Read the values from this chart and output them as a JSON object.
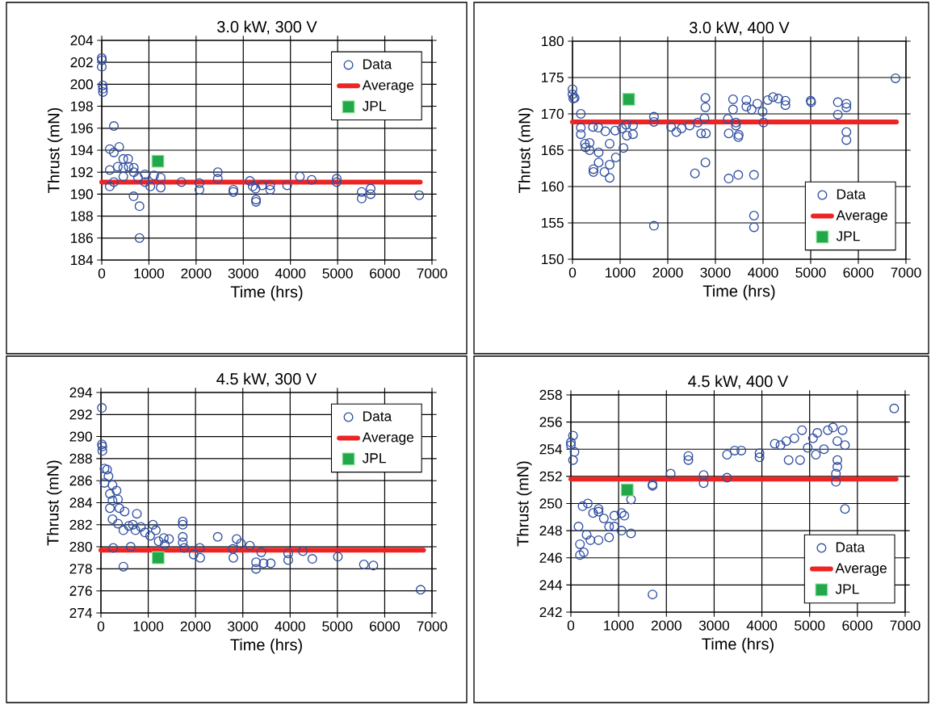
{
  "chart_data": [
    {
      "type": "scatter",
      "title": "3.0 kW, 300 V",
      "xlabel": "Time (hrs)",
      "ylabel": "Thrust (mN)",
      "xlim": [
        0,
        7000
      ],
      "xticks": [
        0,
        1000,
        2000,
        3000,
        4000,
        5000,
        6000,
        7000
      ],
      "ylim": [
        184,
        204
      ],
      "yticks": [
        184,
        186,
        188,
        190,
        192,
        194,
        196,
        198,
        200,
        202,
        204
      ],
      "grid": true,
      "legend": "top right",
      "series": [
        {
          "name": "Data",
          "marker": "circle",
          "color": "#2f4ea0",
          "x": [
            0,
            5,
            0,
            20,
            25,
            25,
            257,
            170,
            257,
            370,
            457,
            560,
            340,
            457,
            570,
            680,
            170,
            457,
            680,
            770,
            915,
            915,
            1030,
            1110,
            1250,
            1250,
            257,
            170,
            675,
            800,
            800,
            1690,
            2070,
            2070,
            2460,
            2460,
            2790,
            2790,
            3140,
            3200,
            3260,
            3270,
            3270,
            3400,
            3570,
            3570,
            3930,
            4200,
            4450,
            4980,
            4980,
            5510,
            5510,
            5700,
            5700,
            6730
          ],
          "values": [
            202.4,
            202.2,
            201.6,
            199.9,
            199.6,
            199.3,
            196.2,
            194.1,
            193.8,
            194.3,
            193.2,
            193.2,
            192.5,
            192.4,
            192.5,
            192.4,
            192.2,
            191.6,
            192.0,
            191.5,
            191.8,
            191.1,
            190.7,
            191.7,
            191.5,
            190.6,
            191.1,
            190.7,
            189.8,
            188.9,
            186.0,
            191.1,
            191.0,
            190.4,
            192.0,
            191.4,
            190.4,
            190.2,
            191.2,
            190.7,
            190.5,
            189.5,
            189.3,
            190.8,
            190.8,
            190.4,
            190.8,
            191.6,
            191.3,
            191.4,
            191.1,
            190.2,
            189.6,
            190.5,
            190.0,
            189.9
          ]
        },
        {
          "name": "Average",
          "type": "line",
          "color": "#ee2424",
          "x": [
            0,
            6750
          ],
          "values": [
            191.1,
            191.1
          ]
        },
        {
          "name": "JPL",
          "marker": "square",
          "color": "#22a84a",
          "x": [
            1190
          ],
          "values": [
            193.0
          ]
        }
      ]
    },
    {
      "type": "scatter",
      "title": "3.0 kW, 400 V",
      "xlabel": "Time (hrs)",
      "ylabel": "Thrust (mN)",
      "xlim": [
        0,
        7000
      ],
      "xticks": [
        0,
        1000,
        2000,
        3000,
        4000,
        5000,
        6000,
        7000
      ],
      "ylim": [
        150,
        180
      ],
      "yticks": [
        150,
        155,
        160,
        165,
        170,
        175,
        180
      ],
      "grid": true,
      "legend": "bottom right",
      "series": [
        {
          "name": "Data",
          "marker": "circle",
          "color": "#2f4ea0",
          "x": [
            0,
            0,
            17,
            45,
            175,
            175,
            175,
            260,
            275,
            360,
            360,
            430,
            545,
            550,
            440,
            440,
            550,
            670,
            780,
            780,
            690,
            780,
            895,
            910,
            1070,
            1040,
            1125,
            1270,
            1270,
            1140,
            1710,
            1710,
            1710,
            2070,
            2180,
            2290,
            2460,
            2630,
            2770,
            2790,
            2790,
            2700,
            2800,
            2570,
            2790,
            3280,
            3280,
            3480,
            3810,
            3810,
            3810,
            3370,
            3260,
            3430,
            3430,
            3490,
            3480,
            3370,
            3650,
            3650,
            3880,
            3990,
            4010,
            4210,
            4320,
            4470,
            4470,
            4100,
            3760,
            5000,
            5010,
            5570,
            5570,
            5750,
            5750,
            5750,
            5750,
            6780
          ],
          "values": [
            173.4,
            172.7,
            172.1,
            172.2,
            170.0,
            168.1,
            167.2,
            165.9,
            165.4,
            166.0,
            165.0,
            168.2,
            168.1,
            164.7,
            162.4,
            162.0,
            163.3,
            162.0,
            161.2,
            163.0,
            167.6,
            165.9,
            167.7,
            164.0,
            165.3,
            168.0,
            168.5,
            168.4,
            167.2,
            167.0,
            169.6,
            168.9,
            154.6,
            168.2,
            167.5,
            168.0,
            168.4,
            168.8,
            169.4,
            172.2,
            170.9,
            167.3,
            167.3,
            161.8,
            163.3,
            167.3,
            161.1,
            161.6,
            161.6,
            156.0,
            154.4,
            172.0,
            169.3,
            168.8,
            168.4,
            167.1,
            166.8,
            170.6,
            171.0,
            171.9,
            171.4,
            170.3,
            168.8,
            172.3,
            172.1,
            171.8,
            171.2,
            171.9,
            170.6,
            171.8,
            171.6,
            171.6,
            169.9,
            171.4,
            170.9,
            167.5,
            166.4,
            174.9
          ]
        },
        {
          "name": "Average",
          "type": "line",
          "color": "#ee2424",
          "x": [
            0,
            6800
          ],
          "values": [
            168.9,
            168.9
          ]
        },
        {
          "name": "JPL",
          "marker": "square",
          "color": "#22a84a",
          "x": [
            1180
          ],
          "values": [
            172.0
          ]
        }
      ]
    },
    {
      "type": "scatter",
      "title": "4.5 kW, 300 V",
      "xlabel": "Time (hrs)",
      "ylabel": "Thrust (mN)",
      "xlim": [
        0,
        7000
      ],
      "xticks": [
        0,
        1000,
        2000,
        3000,
        4000,
        5000,
        6000,
        7000
      ],
      "ylim": [
        274,
        294
      ],
      "yticks": [
        274,
        276,
        278,
        280,
        282,
        284,
        286,
        288,
        290,
        292,
        294
      ],
      "grid": true,
      "legend": "top right",
      "series": [
        {
          "name": "Data",
          "marker": "circle",
          "color": "#2f4ea0",
          "x": [
            20,
            20,
            30,
            30,
            75,
            130,
            160,
            75,
            245,
            330,
            190,
            245,
            360,
            190,
            390,
            500,
            760,
            245,
            360,
            475,
            590,
            675,
            730,
            845,
            930,
            1100,
            1040,
            1160,
            1220,
            1330,
            1440,
            1350,
            260,
            630,
            475,
            1730,
            1730,
            1730,
            1730,
            1760,
            1960,
            2090,
            2100,
            2470,
            2790,
            2800,
            2870,
            2960,
            3150,
            3390,
            3280,
            3280,
            3440,
            3590,
            3960,
            3960,
            4270,
            4470,
            5010,
            5560,
            5760,
            6760
          ],
          "values": [
            292.6,
            289.3,
            289.1,
            288.7,
            287.1,
            287.0,
            286.4,
            285.8,
            285.6,
            285.1,
            284.8,
            284.2,
            284.3,
            283.5,
            283.5,
            283.2,
            283.0,
            282.5,
            282.1,
            281.5,
            281.9,
            282.0,
            281.5,
            281.8,
            281.3,
            282.0,
            281.0,
            281.5,
            280.5,
            280.8,
            280.7,
            280.2,
            279.9,
            280.0,
            278.2,
            282.3,
            282.0,
            280.9,
            280.4,
            279.9,
            279.3,
            279.9,
            279.0,
            280.9,
            279.8,
            279.0,
            280.7,
            280.3,
            280.1,
            279.5,
            278.6,
            278.0,
            278.5,
            278.5,
            279.4,
            278.8,
            279.6,
            278.9,
            279.1,
            278.4,
            278.3,
            276.1
          ]
        },
        {
          "name": "Average",
          "type": "line",
          "color": "#ee2424",
          "x": [
            0,
            6820
          ],
          "values": [
            279.7,
            279.7
          ]
        },
        {
          "name": "JPL",
          "marker": "square",
          "color": "#22a84a",
          "x": [
            1210
          ],
          "values": [
            279.0
          ]
        }
      ]
    },
    {
      "type": "scatter",
      "title": "4.5 kW, 400 V",
      "xlabel": "Time (hrs)",
      "ylabel": "Thrust (mN)",
      "xlim": [
        0,
        7000
      ],
      "xticks": [
        0,
        1000,
        2000,
        3000,
        4000,
        5000,
        6000,
        7000
      ],
      "ylim": [
        242,
        258
      ],
      "yticks": [
        242,
        244,
        246,
        248,
        250,
        252,
        254,
        256,
        258
      ],
      "grid": true,
      "legend": "bottom right",
      "series": [
        {
          "name": "Data",
          "marker": "circle",
          "color": "#2f4ea0",
          "x": [
            45,
            0,
            0,
            75,
            45,
            160,
            190,
            190,
            270,
            245,
            355,
            465,
            580,
            580,
            690,
            330,
            410,
            580,
            800,
            800,
            910,
            910,
            1060,
            1120,
            1060,
            1260,
            1260,
            1710,
            1710,
            1710,
            2090,
            2460,
            2460,
            2780,
            2780,
            3270,
            3270,
            3430,
            3570,
            3950,
            3950,
            4270,
            4390,
            4560,
            4680,
            4800,
            4840,
            4960,
            5130,
            5160,
            5300,
            5380,
            5490,
            5580,
            5690,
            5740,
            5580,
            5580,
            5550,
            5550,
            5740,
            6770,
            4510,
            5070
          ],
          "values": [
            255.0,
            254.5,
            254.3,
            253.8,
            253.2,
            248.3,
            247.0,
            246.2,
            246.4,
            249.8,
            250.0,
            249.3,
            249.6,
            249.4,
            248.9,
            247.7,
            247.3,
            247.3,
            247.5,
            248.3,
            249.1,
            248.3,
            249.3,
            249.1,
            248.0,
            247.8,
            250.3,
            251.4,
            251.3,
            243.3,
            252.2,
            253.5,
            253.2,
            252.1,
            251.5,
            251.9,
            253.6,
            253.9,
            253.9,
            253.7,
            253.4,
            254.4,
            254.3,
            253.2,
            254.8,
            253.2,
            255.4,
            254.1,
            253.6,
            255.2,
            254.0,
            255.4,
            255.6,
            254.6,
            255.4,
            254.3,
            253.2,
            252.7,
            252.2,
            251.6,
            249.6,
            257.0,
            254.6,
            254.8
          ]
        },
        {
          "name": "Average",
          "type": "line",
          "color": "#ee2424",
          "x": [
            0,
            6810
          ],
          "values": [
            251.8,
            251.8
          ]
        },
        {
          "name": "JPL",
          "marker": "square",
          "color": "#22a84a",
          "x": [
            1180
          ],
          "values": [
            251.0
          ]
        }
      ]
    }
  ]
}
